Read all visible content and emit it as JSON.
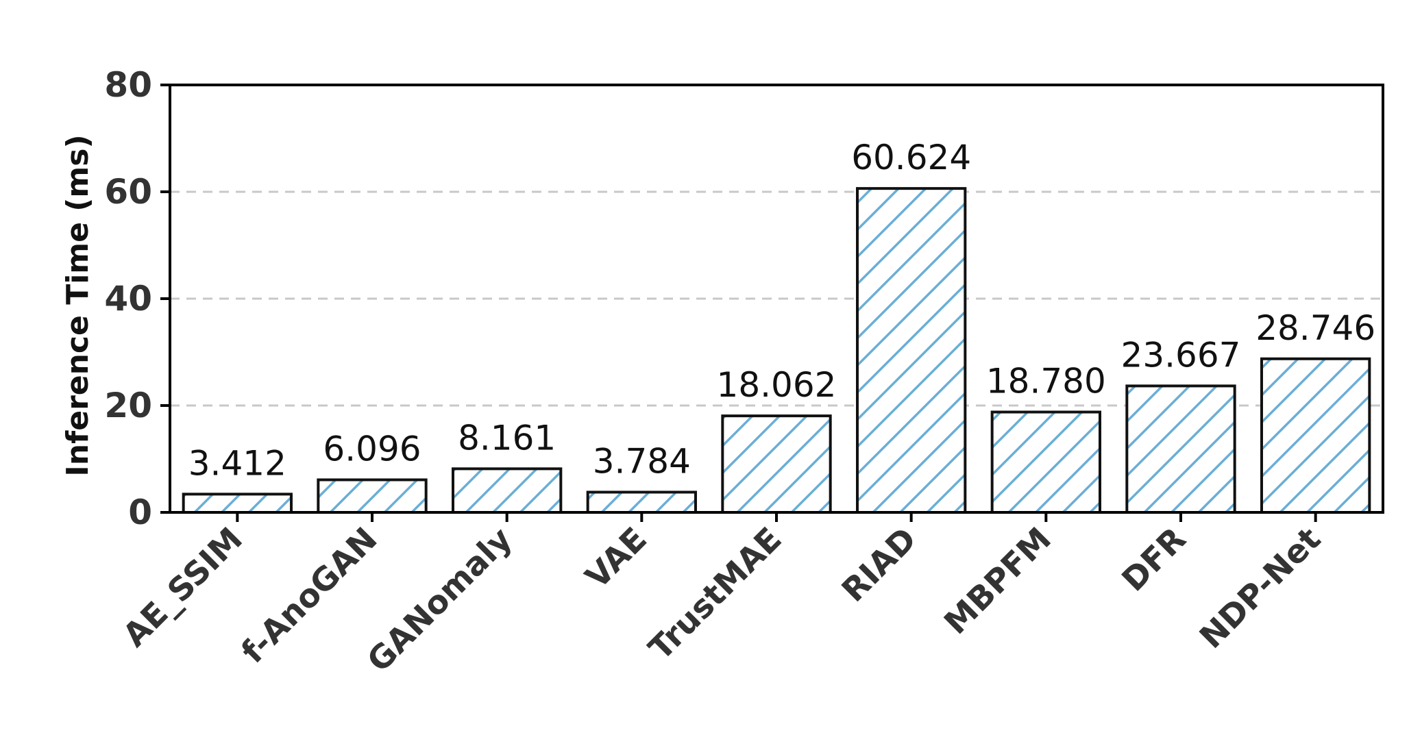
{
  "chart_data": {
    "type": "bar",
    "categories": [
      "AE_SSIM",
      "f-AnoGAN",
      "GANomaly",
      "VAE",
      "TrustMAE",
      "RIAD",
      "MBPFM",
      "DFR",
      "NDP-Net"
    ],
    "values": [
      3.412,
      6.096,
      8.161,
      3.784,
      18.062,
      60.624,
      18.78,
      23.667,
      28.746
    ],
    "value_labels": [
      "3.412",
      "6.096",
      "8.161",
      "3.784",
      "18.062",
      "60.624",
      "18.780",
      "23.667",
      "28.746"
    ],
    "title": "",
    "xlabel": "",
    "ylabel": "Inference Time (ms)",
    "ylim": [
      0,
      80
    ],
    "yticks": [
      0,
      20,
      40,
      60,
      80
    ],
    "ytick_labels": [
      "0",
      "20",
      "40",
      "60",
      "80"
    ],
    "grid": "horizontal dashed",
    "bar_hatch": "diagonal",
    "colors": {
      "hatch": "#6aaed6",
      "bar_edge": "#111111",
      "grid": "#c8c8c8",
      "axis": "#000000"
    }
  }
}
